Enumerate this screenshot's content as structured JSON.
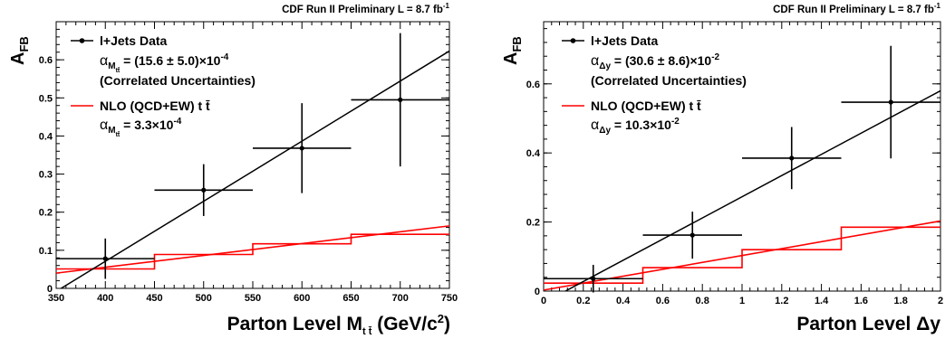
{
  "header": {
    "left": "CDF Run II Preliminary L = 8.7 fb",
    "right": "CDF Run II Preliminary L = 8.7 fb",
    "sup": "-1"
  },
  "chart_data": [
    {
      "type": "scatter",
      "ylabel": "A",
      "ylabel_sub": "FB",
      "xlabel": "Parton Level M",
      "xlabel_sub": "t t̄",
      "xlabel_unit": " (GeV/c",
      "xlabel_unit_sup": "2",
      "xlabel_unit_end": ")",
      "xlim": [
        350,
        750
      ],
      "ylim": [
        0,
        0.7
      ],
      "xticks": [
        "350",
        "400",
        "450",
        "500",
        "550",
        "600",
        "650",
        "700",
        "750"
      ],
      "yticks": [
        "0",
        "0.1",
        "0.2",
        "0.3",
        "0.4",
        "0.5",
        "0.6"
      ],
      "legend": {
        "data_label": "l+Jets Data",
        "data_alpha": "α",
        "data_alpha_sub": "M",
        "data_alpha_subsub": "tt̄",
        "data_alpha_value": " = (15.6 ± 5.0)×10",
        "data_alpha_exp": "-4",
        "data_note": "(Correlated Uncertainties)",
        "nlo_label": "NLO (QCD+EW) t t̄",
        "nlo_alpha": "α",
        "nlo_alpha_sub": "M",
        "nlo_alpha_subsub": "tt̄",
        "nlo_alpha_value": " = 3.3×10",
        "nlo_alpha_exp": "-4"
      },
      "data_series": {
        "name": "l+Jets Data",
        "points": [
          {
            "x": 400,
            "xlo": 350,
            "xhi": 450,
            "y": 0.078,
            "yerr": 0.053
          },
          {
            "x": 500,
            "xlo": 450,
            "xhi": 550,
            "y": 0.258,
            "yerr": 0.068
          },
          {
            "x": 600,
            "xlo": 550,
            "xhi": 650,
            "y": 0.368,
            "yerr": 0.118
          },
          {
            "x": 700,
            "xlo": 650,
            "xhi": 750,
            "y": 0.495,
            "yerr": 0.175
          }
        ],
        "fit": {
          "x": [
            355,
            750
          ],
          "y": [
            0.0,
            0.623
          ]
        }
      },
      "nlo_series": {
        "name": "NLO (QCD+EW) t t̄",
        "steps": [
          {
            "xlo": 350,
            "xhi": 450,
            "y": 0.051
          },
          {
            "xlo": 450,
            "xhi": 550,
            "y": 0.089
          },
          {
            "xlo": 550,
            "xhi": 650,
            "y": 0.117
          },
          {
            "xlo": 650,
            "xhi": 750,
            "y": 0.142
          }
        ],
        "fit": {
          "x": [
            350,
            750
          ],
          "y": [
            0.04,
            0.164
          ]
        }
      },
      "colors": {
        "data": "#000000",
        "nlo": "#ff0000"
      }
    },
    {
      "type": "scatter",
      "ylabel": "A",
      "ylabel_sub": "FB",
      "xlabel": "Parton Level Δy",
      "xlim": [
        0,
        2
      ],
      "ylim": [
        0,
        0.78
      ],
      "xticks": [
        "0",
        "0.2",
        "0.4",
        "0.6",
        "0.8",
        "1",
        "1.2",
        "1.4",
        "1.6",
        "1.8",
        "2"
      ],
      "yticks": [
        "0",
        "0.2",
        "0.4",
        "0.6"
      ],
      "legend": {
        "data_label": "l+Jets Data",
        "data_alpha": "α",
        "data_alpha_sub": "Δy",
        "data_alpha_value": " = (30.6 ± 8.6)×10",
        "data_alpha_exp": "-2",
        "data_note": "(Correlated Uncertainties)",
        "nlo_label": "NLO (QCD+EW) t t̄",
        "nlo_alpha": "α",
        "nlo_alpha_sub": "Δy",
        "nlo_alpha_value": " = 10.3×10",
        "nlo_alpha_exp": "-2"
      },
      "data_series": {
        "name": "l+Jets Data",
        "points": [
          {
            "x": 0.25,
            "xlo": 0.0,
            "xhi": 0.5,
            "y": 0.036,
            "yerr": 0.04
          },
          {
            "x": 0.75,
            "xlo": 0.5,
            "xhi": 1.0,
            "y": 0.162,
            "yerr": 0.068
          },
          {
            "x": 1.25,
            "xlo": 1.0,
            "xhi": 1.5,
            "y": 0.385,
            "yerr": 0.09
          },
          {
            "x": 1.75,
            "xlo": 1.5,
            "xhi": 2.0,
            "y": 0.547,
            "yerr": 0.163
          }
        ],
        "fit": {
          "x": [
            0.11,
            2.0
          ],
          "y": [
            0.0,
            0.58
          ]
        }
      },
      "nlo_series": {
        "name": "NLO (QCD+EW) t t̄",
        "steps": [
          {
            "xlo": 0.0,
            "xhi": 0.5,
            "y": 0.023
          },
          {
            "xlo": 0.5,
            "xhi": 1.0,
            "y": 0.068
          },
          {
            "xlo": 1.0,
            "xhi": 1.5,
            "y": 0.12
          },
          {
            "xlo": 1.5,
            "xhi": 2.0,
            "y": 0.185
          }
        ],
        "fit": {
          "x": [
            0.0,
            2.0
          ],
          "y": [
            0.003,
            0.203
          ]
        }
      },
      "colors": {
        "data": "#000000",
        "nlo": "#ff0000"
      }
    }
  ]
}
